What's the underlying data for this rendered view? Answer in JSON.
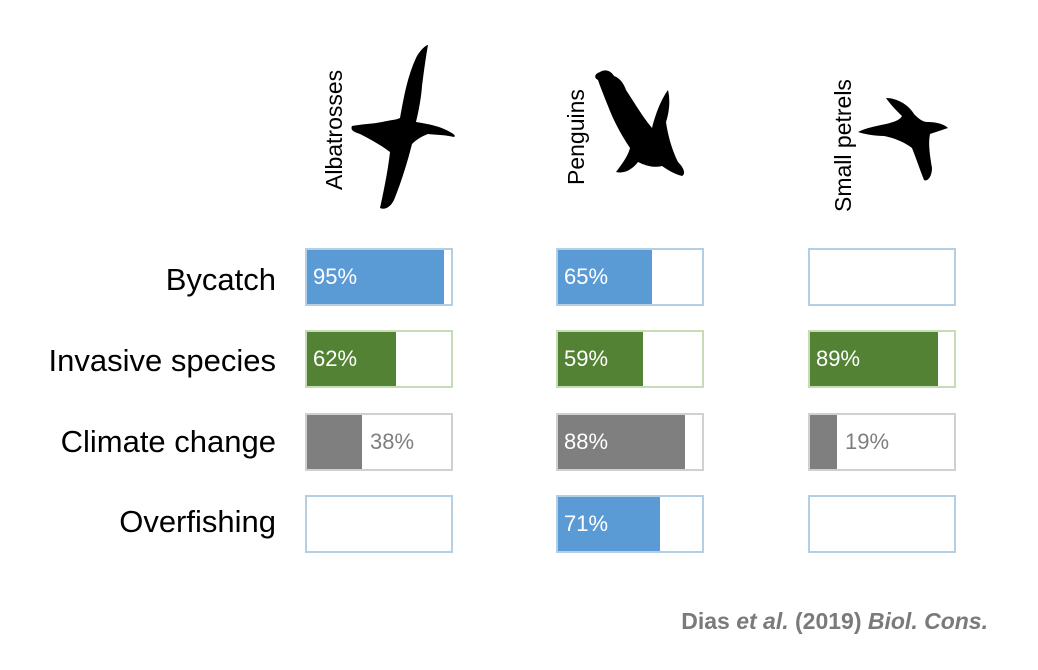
{
  "chart_data": {
    "type": "bar",
    "layout": "grid of horizontal percentage bars (rows = threats, columns = seabird groups)",
    "categories": [
      "Albatrosses",
      "Penguins",
      "Small petrels"
    ],
    "rows": [
      "Bycatch",
      "Invasive species",
      "Climate change",
      "Overfishing"
    ],
    "xlim": [
      0,
      100
    ],
    "series": [
      {
        "name": "Bycatch",
        "color": "#5b9bd5",
        "values": [
          95,
          65,
          null
        ],
        "labels": [
          "95%",
          "65%",
          ""
        ]
      },
      {
        "name": "Invasive species",
        "color": "#548235",
        "values": [
          62,
          59,
          89
        ],
        "labels": [
          "62%",
          "59%",
          "89%"
        ]
      },
      {
        "name": "Climate change",
        "color": "#7f7f7f",
        "values": [
          38,
          88,
          19
        ],
        "labels": [
          "38%",
          "88%",
          "19%"
        ]
      },
      {
        "name": "Overfishing",
        "color": "#5b9bd5",
        "values": [
          null,
          71,
          null
        ],
        "labels": [
          "",
          "71%",
          ""
        ]
      }
    ],
    "icons": [
      "albatross-silhouette-icon",
      "penguin-silhouette-icon",
      "petrel-silhouette-icon"
    ],
    "grid": false,
    "legend": "none"
  },
  "source": {
    "author": "Dias",
    "etal": "et al.",
    "year": "(2019)",
    "journal": "Biol. Cons."
  }
}
